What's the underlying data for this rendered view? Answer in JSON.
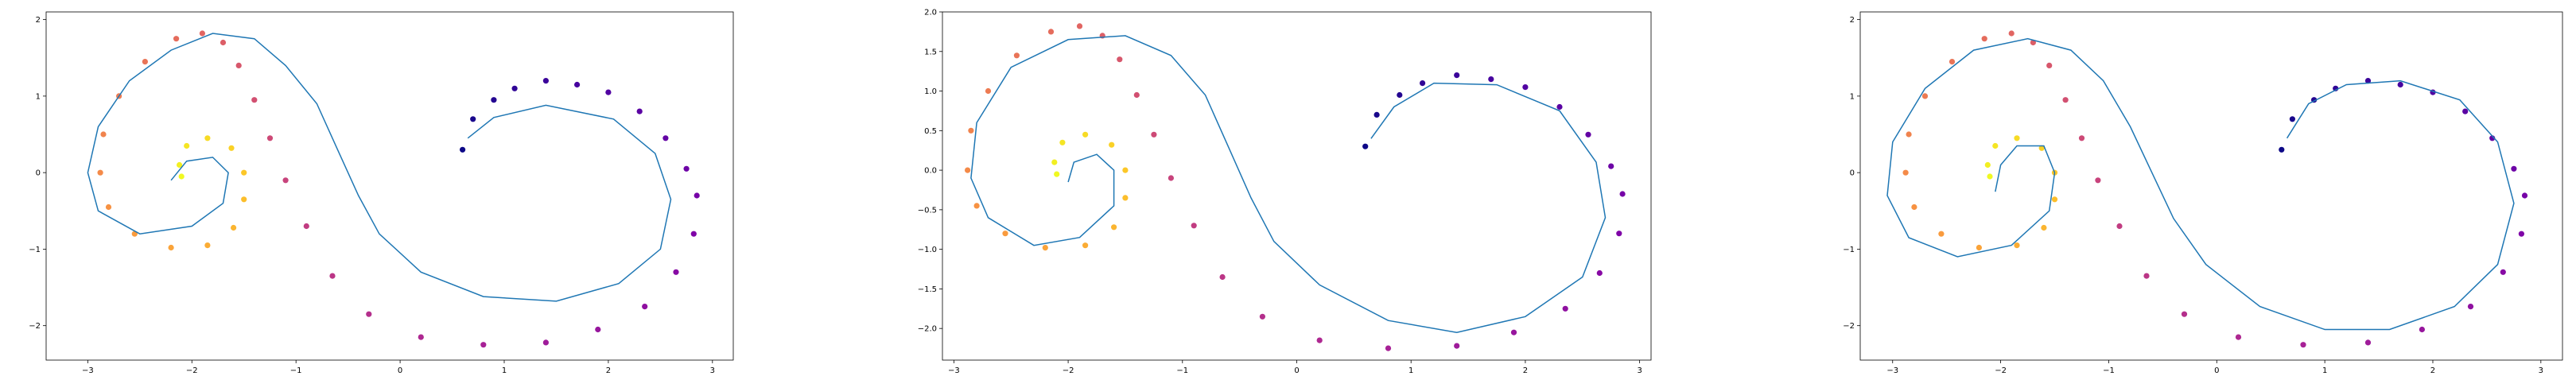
{
  "chart_data": [
    {
      "type": "scatter",
      "xlim": [
        -3.4,
        3.2
      ],
      "ylim": [
        -2.45,
        2.1
      ],
      "xticks": [
        -3,
        -2,
        -1,
        0,
        1,
        2,
        3
      ],
      "yticks": [
        -2,
        -1,
        0,
        1,
        2
      ],
      "xtick_labels": [
        "−3",
        "−2",
        "−1",
        "0",
        "1",
        "2",
        "3"
      ],
      "ytick_labels": [
        "−2",
        "−1",
        "0",
        "1",
        "2"
      ],
      "grid": false,
      "scatter_cmap": "plasma",
      "scatter_t_range": [
        0,
        1
      ],
      "points": [
        [
          0.6,
          0.3
        ],
        [
          0.7,
          0.7
        ],
        [
          0.9,
          0.95
        ],
        [
          1.1,
          1.1
        ],
        [
          1.4,
          1.2
        ],
        [
          1.7,
          1.15
        ],
        [
          2.0,
          1.05
        ],
        [
          2.3,
          0.8
        ],
        [
          2.55,
          0.45
        ],
        [
          2.75,
          0.05
        ],
        [
          2.85,
          -0.3
        ],
        [
          2.82,
          -0.8
        ],
        [
          2.65,
          -1.3
        ],
        [
          2.35,
          -1.75
        ],
        [
          1.9,
          -2.05
        ],
        [
          1.4,
          -2.22
        ],
        [
          0.8,
          -2.25
        ],
        [
          0.2,
          -2.15
        ],
        [
          -0.3,
          -1.85
        ],
        [
          -0.65,
          -1.35
        ],
        [
          -0.9,
          -0.7
        ],
        [
          -1.1,
          -0.1
        ],
        [
          -1.25,
          0.45
        ],
        [
          -1.4,
          0.95
        ],
        [
          -1.55,
          1.4
        ],
        [
          -1.7,
          1.7
        ],
        [
          -1.9,
          1.82
        ],
        [
          -2.15,
          1.75
        ],
        [
          -2.45,
          1.45
        ],
        [
          -2.7,
          1.0
        ],
        [
          -2.85,
          0.5
        ],
        [
          -2.88,
          0.0
        ],
        [
          -2.8,
          -0.45
        ],
        [
          -2.55,
          -0.8
        ],
        [
          -2.2,
          -0.98
        ],
        [
          -1.85,
          -0.95
        ],
        [
          -1.6,
          -0.72
        ],
        [
          -1.5,
          -0.35
        ],
        [
          -1.5,
          0.0
        ],
        [
          -1.62,
          0.32
        ],
        [
          -1.85,
          0.45
        ],
        [
          -2.05,
          0.35
        ],
        [
          -2.12,
          0.1
        ],
        [
          -2.1,
          -0.05
        ]
      ],
      "series": [
        {
          "color": "#1f77b4",
          "curve": [
            [
              -2.2,
              -0.1
            ],
            [
              -2.05,
              0.15
            ],
            [
              -1.8,
              0.2
            ],
            [
              -1.65,
              0.0
            ],
            [
              -1.7,
              -0.4
            ],
            [
              -2.0,
              -0.7
            ],
            [
              -2.5,
              -0.8
            ],
            [
              -2.9,
              -0.5
            ],
            [
              -3.0,
              0.0
            ],
            [
              -2.9,
              0.6
            ],
            [
              -2.6,
              1.2
            ],
            [
              -2.2,
              1.6
            ],
            [
              -1.8,
              1.82
            ],
            [
              -1.4,
              1.75
            ],
            [
              -1.1,
              1.4
            ],
            [
              -0.8,
              0.9
            ],
            [
              -0.6,
              0.3
            ],
            [
              -0.4,
              -0.3
            ],
            [
              -0.2,
              -0.8
            ],
            [
              0.2,
              -1.3
            ],
            [
              0.8,
              -1.62
            ],
            [
              1.5,
              -1.68
            ],
            [
              2.1,
              -1.45
            ],
            [
              2.5,
              -1.0
            ],
            [
              2.6,
              -0.35
            ],
            [
              2.45,
              0.25
            ],
            [
              2.05,
              0.7
            ],
            [
              1.4,
              0.88
            ],
            [
              0.9,
              0.72
            ],
            [
              0.65,
              0.45
            ]
          ]
        }
      ]
    },
    {
      "type": "scatter",
      "xlim": [
        -3.1,
        3.1
      ],
      "ylim": [
        -2.4,
        2.0
      ],
      "xticks": [
        -3,
        -2,
        -1,
        0,
        1,
        2,
        3
      ],
      "yticks": [
        -2.0,
        -1.5,
        -1.0,
        -0.5,
        0.0,
        0.5,
        1.0,
        1.5,
        2.0
      ],
      "xtick_labels": [
        "−3",
        "−2",
        "−1",
        "0",
        "1",
        "2",
        "3"
      ],
      "ytick_labels": [
        "−2.0",
        "−1.5",
        "−1.0",
        "−0.5",
        "0.0",
        "0.5",
        "1.0",
        "1.5",
        "2.0"
      ],
      "grid": false,
      "scatter_cmap": "plasma",
      "scatter_t_range": [
        0,
        1
      ],
      "points": [
        [
          0.6,
          0.3
        ],
        [
          0.7,
          0.7
        ],
        [
          0.9,
          0.95
        ],
        [
          1.1,
          1.1
        ],
        [
          1.4,
          1.2
        ],
        [
          1.7,
          1.15
        ],
        [
          2.0,
          1.05
        ],
        [
          2.3,
          0.8
        ],
        [
          2.55,
          0.45
        ],
        [
          2.75,
          0.05
        ],
        [
          2.85,
          -0.3
        ],
        [
          2.82,
          -0.8
        ],
        [
          2.65,
          -1.3
        ],
        [
          2.35,
          -1.75
        ],
        [
          1.9,
          -2.05
        ],
        [
          1.4,
          -2.22
        ],
        [
          0.8,
          -2.25
        ],
        [
          0.2,
          -2.15
        ],
        [
          -0.3,
          -1.85
        ],
        [
          -0.65,
          -1.35
        ],
        [
          -0.9,
          -0.7
        ],
        [
          -1.1,
          -0.1
        ],
        [
          -1.25,
          0.45
        ],
        [
          -1.4,
          0.95
        ],
        [
          -1.55,
          1.4
        ],
        [
          -1.7,
          1.7
        ],
        [
          -1.9,
          1.82
        ],
        [
          -2.15,
          1.75
        ],
        [
          -2.45,
          1.45
        ],
        [
          -2.7,
          1.0
        ],
        [
          -2.85,
          0.5
        ],
        [
          -2.88,
          0.0
        ],
        [
          -2.8,
          -0.45
        ],
        [
          -2.55,
          -0.8
        ],
        [
          -2.2,
          -0.98
        ],
        [
          -1.85,
          -0.95
        ],
        [
          -1.6,
          -0.72
        ],
        [
          -1.5,
          -0.35
        ],
        [
          -1.5,
          0.0
        ],
        [
          -1.62,
          0.32
        ],
        [
          -1.85,
          0.45
        ],
        [
          -2.05,
          0.35
        ],
        [
          -2.12,
          0.1
        ],
        [
          -2.1,
          -0.05
        ]
      ],
      "series": [
        {
          "color": "#1f77b4",
          "curve": [
            [
              -2.0,
              -0.15
            ],
            [
              -1.95,
              0.1
            ],
            [
              -1.75,
              0.2
            ],
            [
              -1.6,
              0.0
            ],
            [
              -1.6,
              -0.45
            ],
            [
              -1.9,
              -0.85
            ],
            [
              -2.3,
              -0.95
            ],
            [
              -2.7,
              -0.6
            ],
            [
              -2.85,
              -0.1
            ],
            [
              -2.8,
              0.6
            ],
            [
              -2.5,
              1.3
            ],
            [
              -2.0,
              1.65
            ],
            [
              -1.5,
              1.7
            ],
            [
              -1.1,
              1.45
            ],
            [
              -0.8,
              0.95
            ],
            [
              -0.6,
              0.3
            ],
            [
              -0.4,
              -0.35
            ],
            [
              -0.2,
              -0.9
            ],
            [
              0.2,
              -1.45
            ],
            [
              0.8,
              -1.9
            ],
            [
              1.4,
              -2.05
            ],
            [
              2.0,
              -1.85
            ],
            [
              2.5,
              -1.35
            ],
            [
              2.7,
              -0.6
            ],
            [
              2.62,
              0.1
            ],
            [
              2.3,
              0.75
            ],
            [
              1.75,
              1.08
            ],
            [
              1.2,
              1.1
            ],
            [
              0.85,
              0.8
            ],
            [
              0.65,
              0.4
            ]
          ]
        }
      ]
    },
    {
      "type": "scatter",
      "xlim": [
        -3.3,
        3.2
      ],
      "ylim": [
        -2.45,
        2.1
      ],
      "xticks": [
        -3,
        -2,
        -1,
        0,
        1,
        2,
        3
      ],
      "yticks": [
        -2,
        -1,
        0,
        1,
        2
      ],
      "xtick_labels": [
        "−3",
        "−2",
        "−1",
        "0",
        "1",
        "2",
        "3"
      ],
      "ytick_labels": [
        "−2",
        "−1",
        "0",
        "1",
        "2"
      ],
      "grid": false,
      "scatter_cmap": "plasma",
      "scatter_t_range": [
        0,
        1
      ],
      "points": [
        [
          0.6,
          0.3
        ],
        [
          0.7,
          0.7
        ],
        [
          0.9,
          0.95
        ],
        [
          1.1,
          1.1
        ],
        [
          1.4,
          1.2
        ],
        [
          1.7,
          1.15
        ],
        [
          2.0,
          1.05
        ],
        [
          2.3,
          0.8
        ],
        [
          2.55,
          0.45
        ],
        [
          2.75,
          0.05
        ],
        [
          2.85,
          -0.3
        ],
        [
          2.82,
          -0.8
        ],
        [
          2.65,
          -1.3
        ],
        [
          2.35,
          -1.75
        ],
        [
          1.9,
          -2.05
        ],
        [
          1.4,
          -2.22
        ],
        [
          0.8,
          -2.25
        ],
        [
          0.2,
          -2.15
        ],
        [
          -0.3,
          -1.85
        ],
        [
          -0.65,
          -1.35
        ],
        [
          -0.9,
          -0.7
        ],
        [
          -1.1,
          -0.1
        ],
        [
          -1.25,
          0.45
        ],
        [
          -1.4,
          0.95
        ],
        [
          -1.55,
          1.4
        ],
        [
          -1.7,
          1.7
        ],
        [
          -1.9,
          1.82
        ],
        [
          -2.15,
          1.75
        ],
        [
          -2.45,
          1.45
        ],
        [
          -2.7,
          1.0
        ],
        [
          -2.85,
          0.5
        ],
        [
          -2.88,
          0.0
        ],
        [
          -2.8,
          -0.45
        ],
        [
          -2.55,
          -0.8
        ],
        [
          -2.2,
          -0.98
        ],
        [
          -1.85,
          -0.95
        ],
        [
          -1.6,
          -0.72
        ],
        [
          -1.5,
          -0.35
        ],
        [
          -1.5,
          0.0
        ],
        [
          -1.62,
          0.32
        ],
        [
          -1.85,
          0.45
        ],
        [
          -2.05,
          0.35
        ],
        [
          -2.12,
          0.1
        ],
        [
          -2.1,
          -0.05
        ]
      ],
      "series": [
        {
          "color": "#1f77b4",
          "curve": [
            [
              -2.05,
              -0.25
            ],
            [
              -2.0,
              0.1
            ],
            [
              -1.85,
              0.35
            ],
            [
              -1.6,
              0.35
            ],
            [
              -1.5,
              0.0
            ],
            [
              -1.55,
              -0.5
            ],
            [
              -1.9,
              -0.95
            ],
            [
              -2.4,
              -1.1
            ],
            [
              -2.85,
              -0.85
            ],
            [
              -3.05,
              -0.3
            ],
            [
              -3.0,
              0.4
            ],
            [
              -2.7,
              1.1
            ],
            [
              -2.25,
              1.6
            ],
            [
              -1.75,
              1.75
            ],
            [
              -1.35,
              1.6
            ],
            [
              -1.05,
              1.2
            ],
            [
              -0.8,
              0.6
            ],
            [
              -0.6,
              0.0
            ],
            [
              -0.4,
              -0.6
            ],
            [
              -0.1,
              -1.2
            ],
            [
              0.4,
              -1.75
            ],
            [
              1.0,
              -2.05
            ],
            [
              1.6,
              -2.05
            ],
            [
              2.2,
              -1.75
            ],
            [
              2.6,
              -1.2
            ],
            [
              2.75,
              -0.4
            ],
            [
              2.6,
              0.4
            ],
            [
              2.25,
              0.95
            ],
            [
              1.7,
              1.2
            ],
            [
              1.2,
              1.15
            ],
            [
              0.85,
              0.9
            ],
            [
              0.65,
              0.45
            ]
          ]
        }
      ]
    }
  ]
}
